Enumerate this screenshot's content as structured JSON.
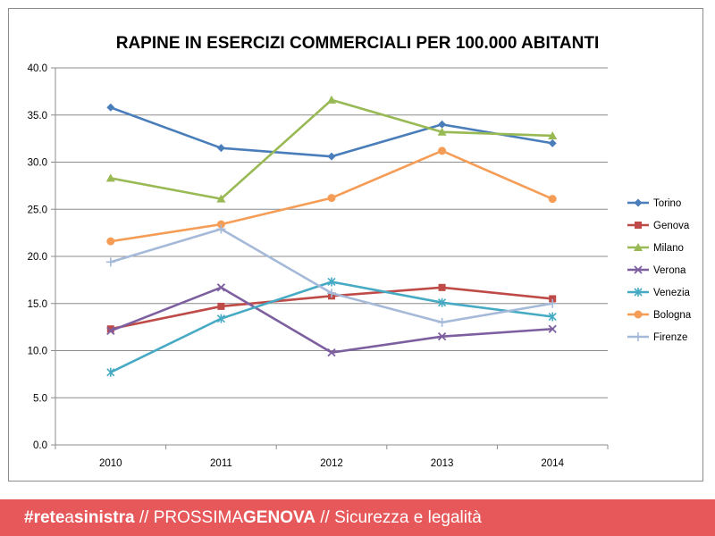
{
  "chart_data": {
    "type": "line",
    "title": "RAPINE IN ESERCIZI COMMERCIALI PER 100.000 ABITANTI",
    "xlabel": "",
    "ylabel": "",
    "categories": [
      "2010",
      "2011",
      "2012",
      "2013",
      "2014"
    ],
    "ylim": [
      0,
      40
    ],
    "yticks": [
      "0.0",
      "5.0",
      "10.0",
      "15.0",
      "20.0",
      "25.0",
      "30.0",
      "35.0",
      "40.0"
    ],
    "grid": true,
    "legend_position": "right",
    "series": [
      {
        "name": "Torino",
        "color": "#4a7ebb",
        "marker": "diamond",
        "values": [
          35.8,
          31.5,
          30.6,
          34.0,
          32.0
        ]
      },
      {
        "name": "Genova",
        "color": "#be4b48",
        "marker": "square",
        "values": [
          12.3,
          14.7,
          15.8,
          16.7,
          15.5
        ]
      },
      {
        "name": "Milano",
        "color": "#98b954",
        "marker": "triangle",
        "values": [
          28.3,
          26.1,
          36.6,
          33.2,
          32.8
        ]
      },
      {
        "name": "Verona",
        "color": "#7d5fa0",
        "marker": "x",
        "values": [
          12.1,
          16.7,
          9.8,
          11.5,
          12.3
        ]
      },
      {
        "name": "Venezia",
        "color": "#46aac4",
        "marker": "star",
        "values": [
          7.7,
          13.4,
          17.3,
          15.1,
          13.6
        ]
      },
      {
        "name": "Bologna",
        "color": "#f59d56",
        "marker": "circle",
        "values": [
          21.6,
          23.4,
          26.2,
          31.2,
          26.1
        ]
      },
      {
        "name": "Firenze",
        "color": "#a5b9d9",
        "marker": "plus",
        "values": [
          19.4,
          22.9,
          16.1,
          13.0,
          15.0
        ]
      }
    ]
  },
  "footer": {
    "part1": "#rete",
    "part2": "a",
    "part3": "sinistra",
    "part4": " // PROSSIMA",
    "part5": "GENOVA",
    "part6": " // Sicurezza e legalità"
  }
}
